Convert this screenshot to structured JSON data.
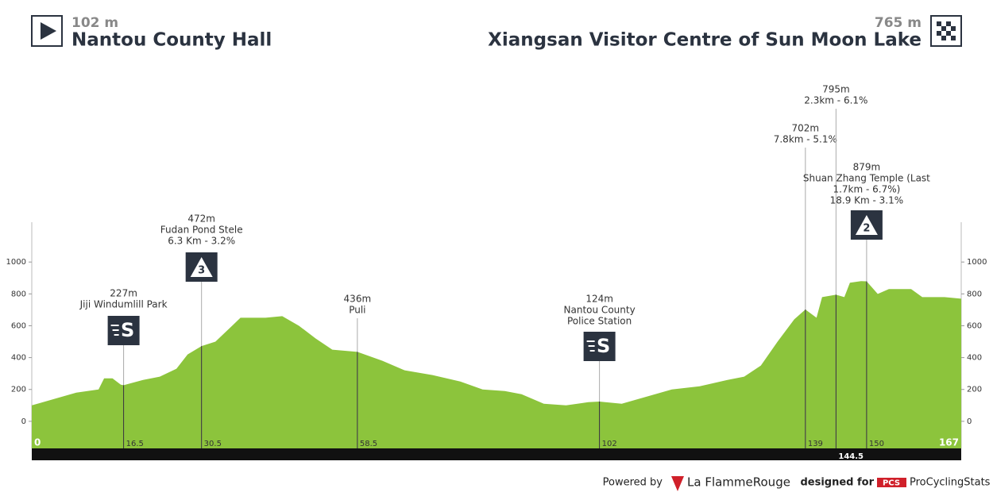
{
  "header": {
    "start": {
      "altitude": "102 m",
      "name": "Nantou County Hall"
    },
    "finish": {
      "altitude": "765 m",
      "name": "Xiangsan Visitor Centre of Sun Moon Lake"
    }
  },
  "chart_data": {
    "type": "area",
    "x": [
      0,
      5,
      8,
      12,
      13,
      14.5,
      16,
      16.5,
      20,
      23,
      26,
      28,
      30.5,
      33,
      36,
      37.5,
      42,
      45,
      48,
      51,
      54,
      58.5,
      63,
      67,
      72,
      77,
      81,
      85,
      88,
      92,
      96,
      100,
      102,
      106,
      110,
      115,
      120,
      125,
      128,
      131,
      134,
      137,
      139,
      141,
      142,
      144.5,
      146,
      147,
      149,
      150,
      152,
      154,
      158,
      160,
      164,
      167
    ],
    "values": [
      100,
      150,
      180,
      200,
      270,
      270,
      230,
      227,
      260,
      280,
      330,
      420,
      472,
      500,
      600,
      650,
      650,
      660,
      600,
      520,
      450,
      436,
      380,
      320,
      290,
      250,
      200,
      190,
      170,
      110,
      100,
      120,
      124,
      110,
      150,
      200,
      220,
      260,
      280,
      350,
      500,
      640,
      702,
      650,
      780,
      795,
      780,
      870,
      880,
      879,
      800,
      830,
      830,
      780,
      780,
      770
    ],
    "color": "#8cc43c",
    "xlim": [
      0,
      167
    ],
    "ylim": [
      -170,
      1250
    ],
    "yticks": [
      0,
      200,
      400,
      600,
      800,
      1000
    ],
    "annotations": [
      {
        "km": 16.5,
        "lines": [
          "227m",
          "Jiji Windumlill Park"
        ],
        "badge": "S"
      },
      {
        "km": 30.5,
        "lines": [
          "472m",
          "Fudan Pond Stele",
          "6.3 Km - 3.2%"
        ],
        "badge": "3"
      },
      {
        "km": 58.5,
        "lines": [
          "436m",
          "Puli"
        ]
      },
      {
        "km": 102,
        "lines": [
          "124m",
          "Nantou County",
          "Police Station"
        ],
        "badge": "S"
      },
      {
        "km": 139,
        "lines": [
          "702m",
          "7.8km - 5.1%"
        ]
      },
      {
        "km": 144.5,
        "lines": [
          "795m",
          "2.3km - 6.1%"
        ]
      },
      {
        "km": 150,
        "lines": [
          "879m",
          "Shuan Zhang Temple (Last",
          "1.7km - 6.7%)",
          "18.9 Km - 3.1%"
        ],
        "badge": "2"
      }
    ]
  },
  "footer": {
    "powered": "Powered by",
    "brand": "La FlammeRouge",
    "designed": "designed for",
    "pcs": "PCS",
    "site": "ProCyclingStats"
  }
}
